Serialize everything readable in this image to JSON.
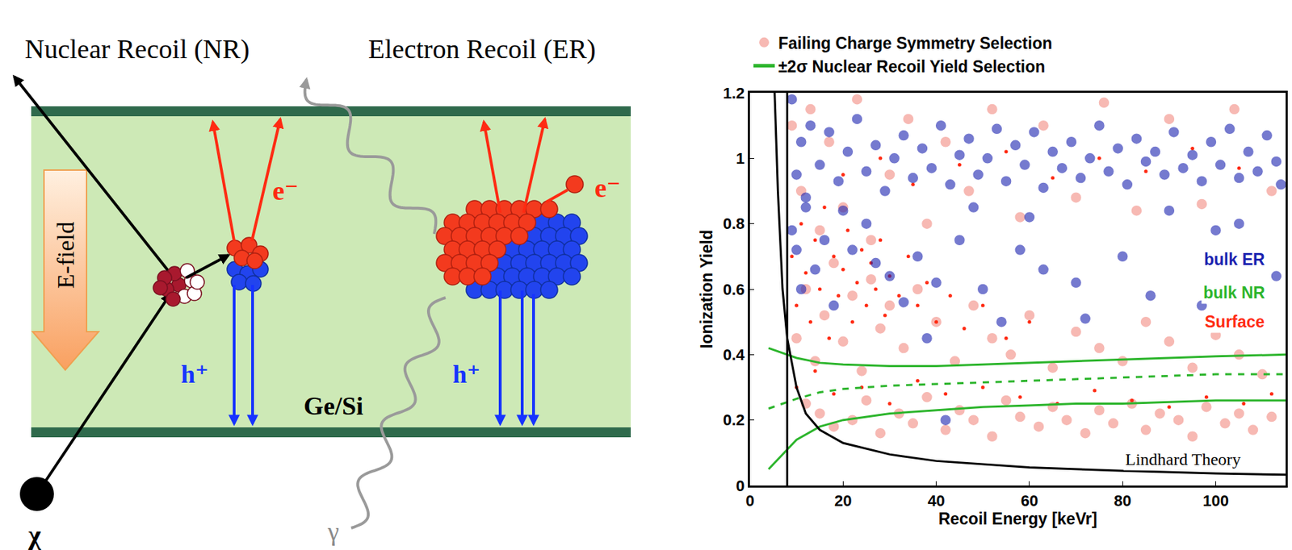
{
  "diagram": {
    "title_nr": "Nuclear Recoil (NR)",
    "title_er": "Electron Recoil (ER)",
    "field_label": "E-field",
    "material_label": "Ge/Si",
    "electron_label": "e⁻",
    "hole_label": "h⁺",
    "particle_label": "χ",
    "photon_label": "γ"
  },
  "chart_data": {
    "type": "scatter",
    "xlabel": "Recoil Energy [keVr]",
    "ylabel": "Ionization Yield",
    "xlim": [
      0,
      115
    ],
    "xticks": [
      0,
      20,
      40,
      60,
      80,
      100
    ],
    "ylim": [
      0,
      1.2
    ],
    "yticks": [
      0,
      0.2,
      0.4,
      0.6,
      0.8,
      1,
      1.2
    ],
    "grid": false,
    "legend": "top",
    "vertical_line": 8,
    "series": [
      {
        "name": "Failing Charge Symmetry Selection",
        "type": "scatter",
        "marker": "circle",
        "color": "#f28b82",
        "x": [
          12,
          15,
          18,
          22,
          25,
          28,
          32,
          35,
          38,
          42,
          45,
          48,
          52,
          55,
          58,
          62,
          65,
          68,
          72,
          75,
          78,
          82,
          85,
          88,
          92,
          95,
          98,
          102,
          105,
          108,
          112,
          10,
          12,
          14,
          16,
          18,
          20,
          22,
          24,
          26,
          28,
          30,
          33,
          36,
          40,
          44,
          48,
          52,
          56,
          60,
          65,
          70,
          75,
          80,
          85,
          90,
          95,
          100,
          105,
          110,
          9,
          11,
          13,
          15,
          17,
          20,
          23,
          26,
          30,
          34,
          38,
          42,
          47,
          52,
          58,
          63,
          70,
          76,
          83,
          90,
          97,
          104,
          112
        ],
        "values": [
          0.25,
          0.22,
          0.18,
          0.2,
          0.26,
          0.16,
          0.22,
          0.19,
          0.27,
          0.17,
          0.23,
          0.2,
          0.15,
          0.26,
          0.21,
          0.18,
          0.24,
          0.2,
          0.16,
          0.23,
          0.19,
          0.25,
          0.17,
          0.22,
          0.2,
          0.15,
          0.24,
          0.19,
          0.22,
          0.17,
          0.21,
          0.45,
          0.6,
          0.38,
          0.52,
          0.68,
          0.44,
          0.58,
          0.35,
          0.63,
          0.48,
          0.55,
          0.42,
          0.6,
          0.5,
          0.38,
          0.55,
          0.45,
          0.4,
          0.52,
          0.36,
          0.47,
          0.42,
          0.38,
          0.5,
          0.44,
          0.36,
          0.46,
          0.4,
          0.34,
          1.1,
          0.9,
          1.15,
          0.78,
          1.05,
          0.85,
          1.18,
          0.75,
          0.95,
          1.12,
          0.8,
          1.05,
          0.9,
          1.15,
          0.82,
          1.1,
          0.88,
          1.17,
          0.84,
          1.12,
          0.86,
          1.15,
          0.9
        ]
      },
      {
        "name": "Surface",
        "type": "scatter",
        "marker": "dot",
        "color": "#ff2a12",
        "label_pos": [
          104,
          0.5
        ],
        "x": [
          9,
          10,
          11,
          12,
          13,
          14,
          15,
          16,
          17,
          18,
          19,
          20,
          21,
          22,
          23,
          24,
          25,
          26,
          27,
          28,
          29,
          30,
          32,
          34,
          36,
          38,
          40,
          43,
          46,
          50,
          55,
          60,
          10,
          14,
          18,
          24,
          30,
          36,
          42,
          50,
          58,
          66,
          74,
          82,
          90,
          98,
          106,
          112,
          20,
          28,
          35,
          45,
          55,
          65,
          75,
          85,
          95,
          105
        ],
        "values": [
          0.7,
          0.55,
          0.8,
          0.65,
          0.5,
          0.75,
          0.6,
          0.85,
          0.45,
          0.7,
          0.58,
          0.66,
          0.78,
          0.5,
          0.62,
          0.72,
          0.55,
          0.68,
          0.6,
          0.75,
          0.52,
          0.64,
          0.58,
          0.7,
          0.55,
          0.62,
          0.5,
          0.58,
          0.48,
          0.55,
          0.45,
          0.5,
          0.3,
          0.35,
          0.28,
          0.3,
          0.25,
          0.32,
          0.28,
          0.3,
          0.27,
          0.25,
          0.29,
          0.26,
          0.24,
          0.27,
          0.25,
          0.28,
          0.95,
          1.0,
          0.92,
          0.98,
          1.02,
          0.94,
          1.0,
          0.96,
          1.03,
          0.97
        ]
      },
      {
        "name": "bulk ER",
        "type": "scatter",
        "marker": "circle",
        "color": "#1a22b0",
        "label_pos": [
          104,
          0.69
        ],
        "x": [
          9,
          10,
          11,
          12,
          13,
          15,
          17,
          19,
          21,
          23,
          25,
          27,
          29,
          31,
          33,
          35,
          37,
          39,
          41,
          43,
          45,
          47,
          49,
          51,
          53,
          55,
          57,
          59,
          61,
          63,
          65,
          67,
          69,
          71,
          73,
          75,
          77,
          79,
          81,
          83,
          85,
          87,
          89,
          91,
          93,
          95,
          97,
          99,
          101,
          103,
          105,
          107,
          109,
          111,
          113,
          114,
          9,
          10,
          11,
          12,
          14,
          16,
          18,
          22,
          25,
          27,
          30,
          33,
          36,
          38,
          40,
          42,
          45,
          50,
          54,
          58,
          63,
          70,
          72,
          80,
          86,
          97,
          105,
          113,
          20,
          48,
          60,
          90,
          100
        ],
        "values": [
          1.18,
          0.95,
          1.05,
          0.88,
          1.1,
          0.98,
          1.08,
          0.93,
          1.02,
          1.12,
          0.96,
          1.04,
          0.9,
          1.0,
          1.07,
          0.94,
          1.03,
          0.97,
          1.1,
          0.92,
          1.01,
          1.06,
          0.95,
          1.0,
          1.09,
          0.93,
          1.04,
          0.98,
          1.08,
          0.91,
          1.02,
          0.97,
          1.05,
          0.94,
          1.0,
          1.1,
          0.96,
          1.03,
          0.92,
          1.06,
          0.99,
          1.02,
          0.95,
          1.08,
          0.97,
          1.01,
          0.93,
          1.05,
          0.98,
          1.09,
          0.94,
          1.02,
          0.96,
          1.07,
          0.99,
          0.92,
          0.78,
          0.72,
          0.6,
          0.85,
          0.66,
          0.75,
          0.55,
          0.72,
          0.8,
          0.68,
          0.64,
          0.56,
          0.7,
          0.45,
          0.62,
          0.2,
          0.75,
          0.6,
          0.5,
          0.72,
          0.66,
          0.62,
          0.51,
          0.7,
          0.58,
          0.55,
          0.8,
          0.64,
          0.84,
          0.85,
          0.82,
          0.84,
          0.78
        ]
      },
      {
        "name": "±2σ Nuclear Recoil Yield Selection",
        "type": "band",
        "color": "#2cb52c",
        "line_style": "solid",
        "x": [
          4,
          6,
          8,
          10,
          15,
          20,
          30,
          40,
          50,
          60,
          70,
          80,
          90,
          100,
          115
        ],
        "upper": [
          0.42,
          0.41,
          0.4,
          0.39,
          0.375,
          0.37,
          0.365,
          0.365,
          0.37,
          0.375,
          0.38,
          0.385,
          0.39,
          0.395,
          0.4
        ],
        "lower": [
          0.05,
          0.08,
          0.11,
          0.14,
          0.18,
          0.2,
          0.22,
          0.23,
          0.24,
          0.245,
          0.25,
          0.25,
          0.255,
          0.26,
          0.26
        ]
      },
      {
        "name": "bulk NR",
        "type": "line",
        "color": "#2cb52c",
        "line_style": "dashed",
        "label_pos": [
          104,
          0.59
        ],
        "x": [
          4,
          6,
          8,
          10,
          15,
          20,
          30,
          40,
          50,
          60,
          70,
          80,
          90,
          100,
          115
        ],
        "values": [
          0.235,
          0.245,
          0.255,
          0.265,
          0.285,
          0.295,
          0.305,
          0.31,
          0.315,
          0.32,
          0.325,
          0.33,
          0.335,
          0.34,
          0.34
        ]
      },
      {
        "name": "Lindhard Theory",
        "type": "line",
        "color": "#000000",
        "line_style": "solid",
        "label_pos": [
          93,
          0.08
        ],
        "x": [
          5.3,
          6,
          7,
          8,
          10,
          12,
          15,
          20,
          30,
          40,
          60,
          80,
          100,
          115
        ],
        "values": [
          1.2,
          0.9,
          0.6,
          0.45,
          0.3,
          0.22,
          0.17,
          0.13,
          0.095,
          0.075,
          0.055,
          0.045,
          0.037,
          0.033
        ]
      }
    ]
  }
}
